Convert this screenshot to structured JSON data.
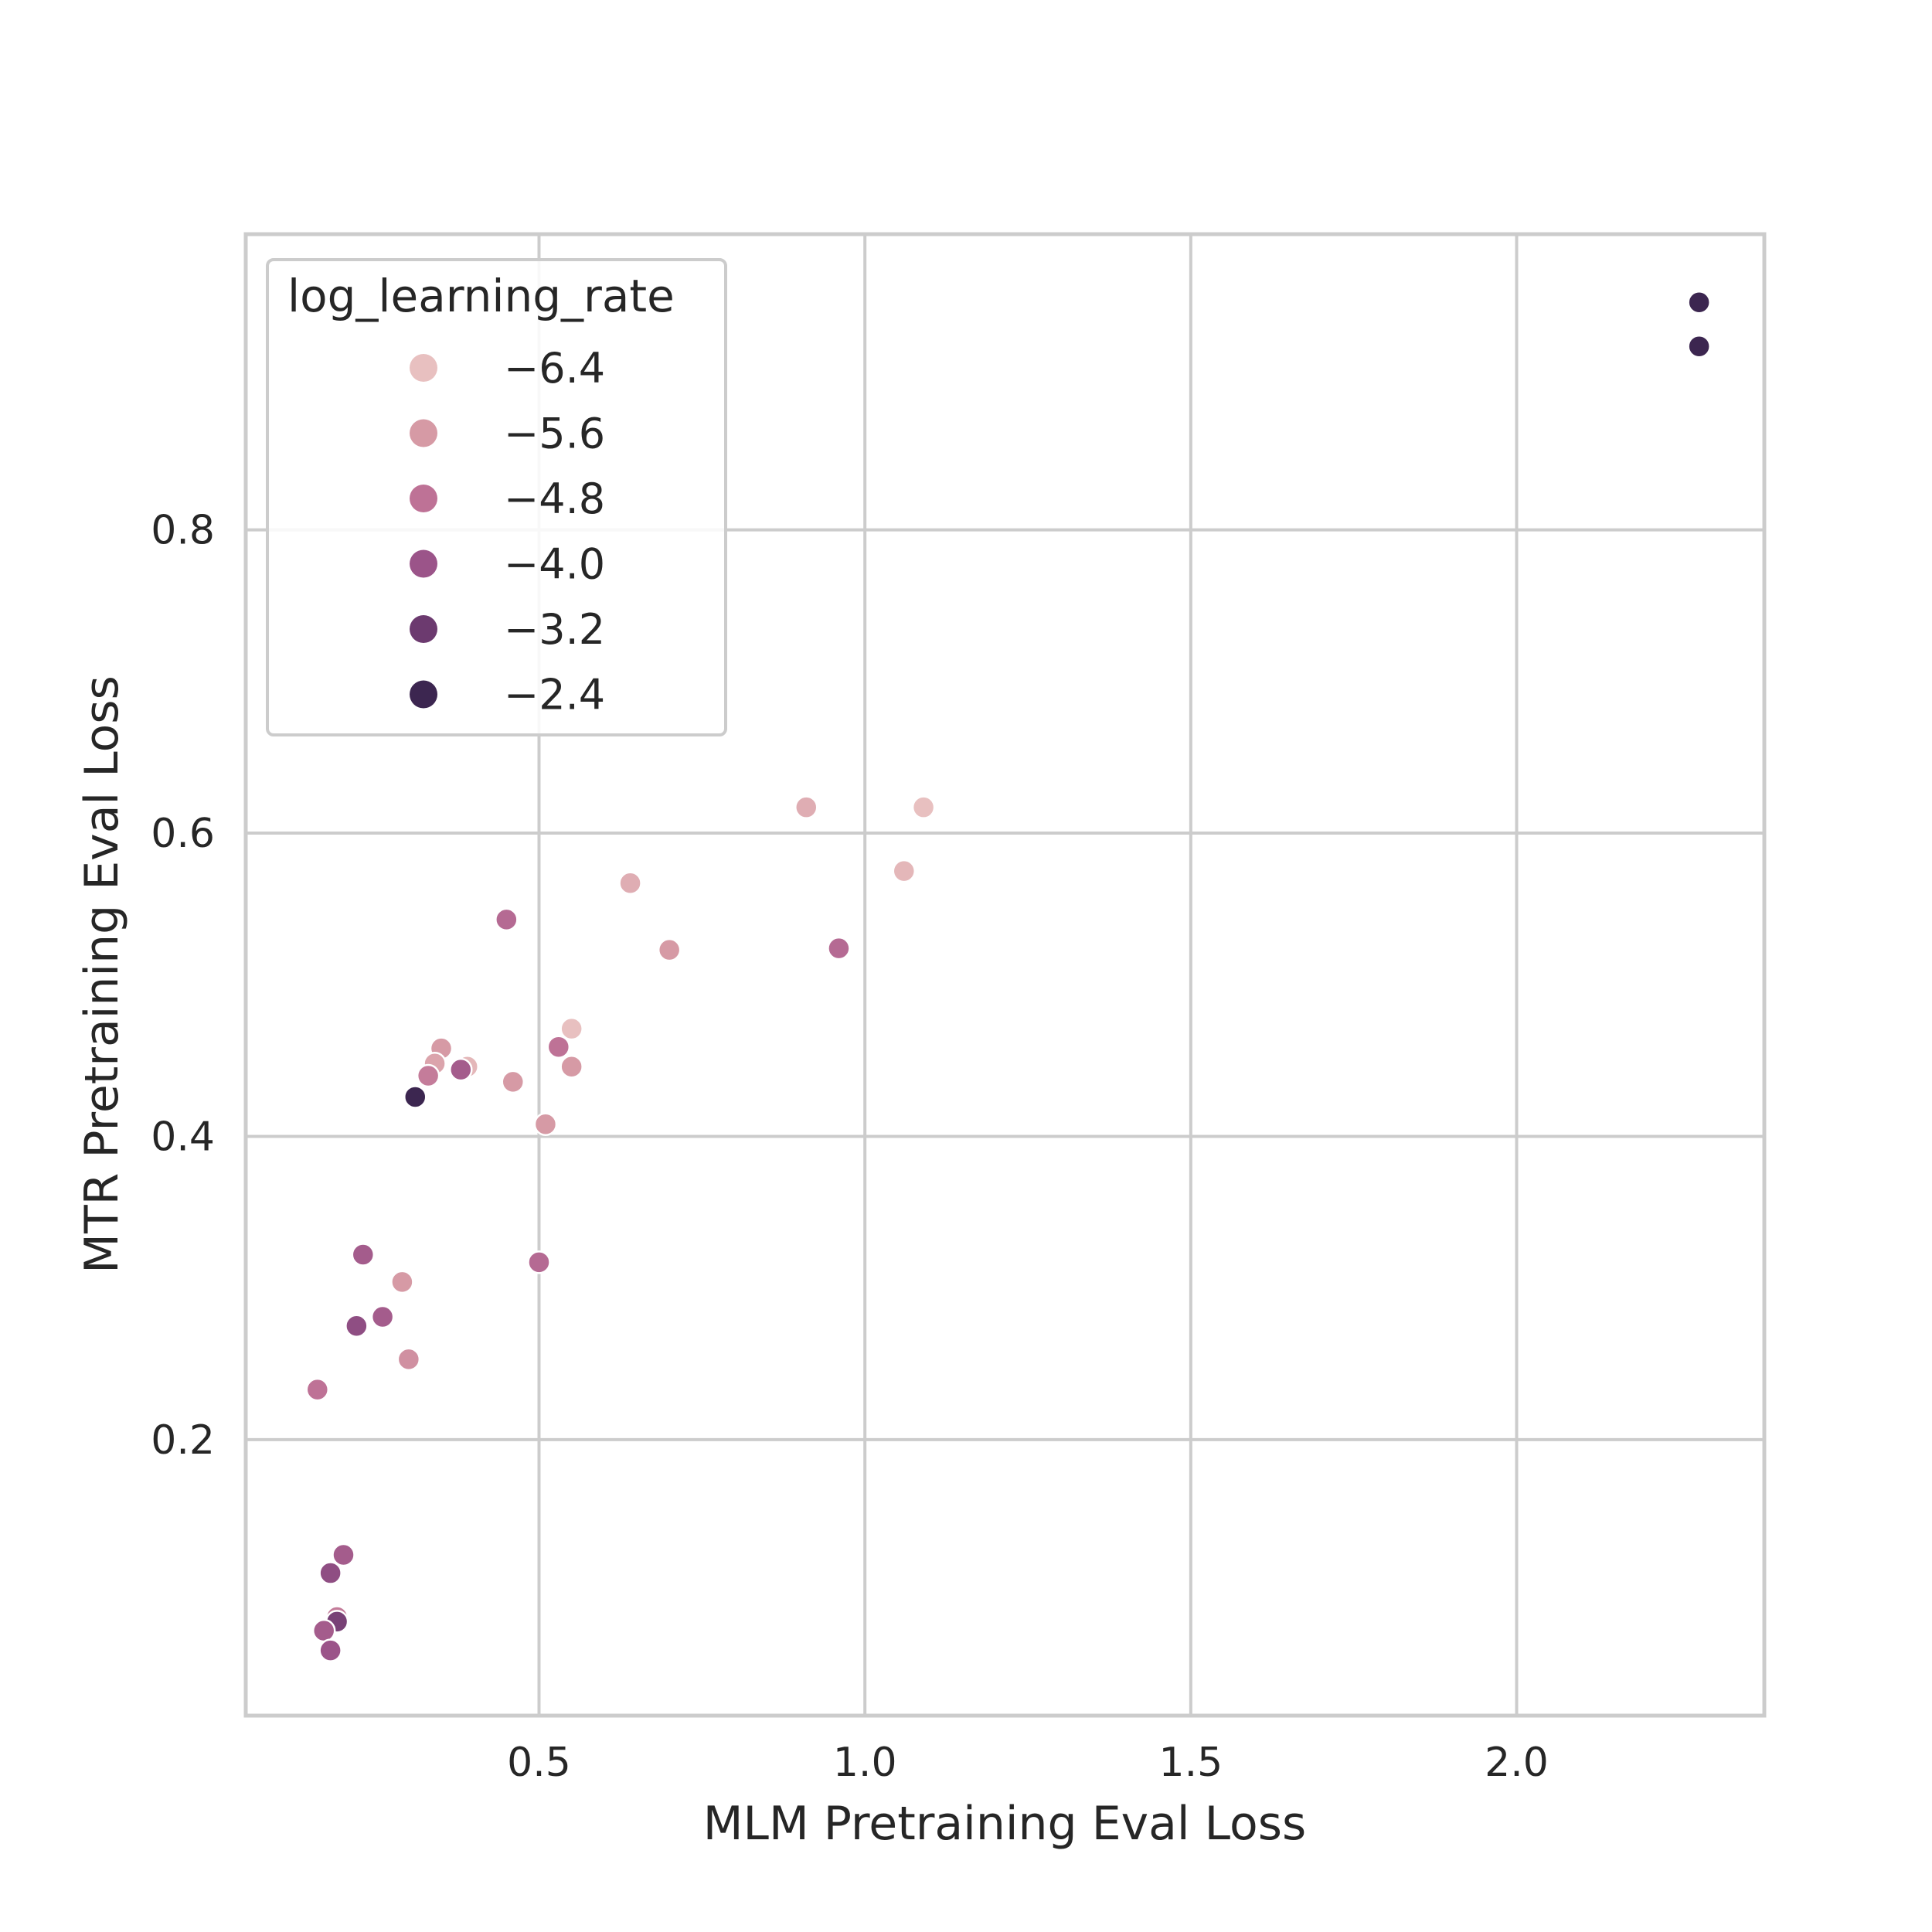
{
  "chart_data": {
    "type": "scatter",
    "title": "",
    "xlabel": "MLM Pretraining Eval Loss",
    "ylabel": "MTR Pretraining Eval Loss",
    "xlim": [
      0.05,
      2.38
    ],
    "ylim": [
      0.018,
      0.995
    ],
    "xticks": [
      0.5,
      1.0,
      1.5,
      2.0
    ],
    "xtick_labels": [
      "0.5",
      "1.0",
      "1.5",
      "2.0"
    ],
    "yticks": [
      0.2,
      0.4,
      0.6,
      0.8
    ],
    "ytick_labels": [
      "0.2",
      "0.4",
      "0.6",
      "0.8"
    ],
    "grid": true,
    "hue_variable": "log_learning_rate",
    "legend": {
      "title": "log_learning_rate",
      "placement": "upper-left",
      "entries": [
        {
          "label": "−6.4",
          "value": -6.4,
          "color": "#e8c0c0"
        },
        {
          "label": "−5.6",
          "value": -5.6,
          "color": "#d69aa5"
        },
        {
          "label": "−4.8",
          "value": -4.8,
          "color": "#be7296"
        },
        {
          "label": "−4.0",
          "value": -4.0,
          "color": "#9b5489"
        },
        {
          "label": "−3.2",
          "value": -3.2,
          "color": "#6c3a6f"
        },
        {
          "label": "−2.4",
          "value": -2.4,
          "color": "#3c2650"
        }
      ]
    },
    "points": [
      {
        "x": 2.28,
        "y": 0.95,
        "hue": -2.4
      },
      {
        "x": 2.28,
        "y": 0.921,
        "hue": -2.4
      },
      {
        "x": 0.91,
        "y": 0.617,
        "hue": -6.0
      },
      {
        "x": 1.09,
        "y": 0.617,
        "hue": -6.5
      },
      {
        "x": 1.06,
        "y": 0.575,
        "hue": -6.2
      },
      {
        "x": 0.64,
        "y": 0.567,
        "hue": -6.0
      },
      {
        "x": 0.45,
        "y": 0.543,
        "hue": -4.6
      },
      {
        "x": 0.7,
        "y": 0.523,
        "hue": -5.6
      },
      {
        "x": 0.96,
        "y": 0.524,
        "hue": -4.6
      },
      {
        "x": 0.55,
        "y": 0.471,
        "hue": -6.6
      },
      {
        "x": 0.35,
        "y": 0.458,
        "hue": -5.6
      },
      {
        "x": 0.53,
        "y": 0.459,
        "hue": -4.8
      },
      {
        "x": 0.55,
        "y": 0.446,
        "hue": -5.6
      },
      {
        "x": 0.39,
        "y": 0.446,
        "hue": -6.2
      },
      {
        "x": 0.34,
        "y": 0.448,
        "hue": -5.8
      },
      {
        "x": 0.33,
        "y": 0.44,
        "hue": -5.0
      },
      {
        "x": 0.38,
        "y": 0.444,
        "hue": -4.2
      },
      {
        "x": 0.46,
        "y": 0.436,
        "hue": -5.6
      },
      {
        "x": 0.31,
        "y": 0.426,
        "hue": -2.4
      },
      {
        "x": 0.51,
        "y": 0.408,
        "hue": -5.6
      },
      {
        "x": 0.23,
        "y": 0.322,
        "hue": -4.2
      },
      {
        "x": 0.5,
        "y": 0.317,
        "hue": -4.6
      },
      {
        "x": 0.29,
        "y": 0.304,
        "hue": -5.6
      },
      {
        "x": 0.26,
        "y": 0.281,
        "hue": -4.2
      },
      {
        "x": 0.22,
        "y": 0.275,
        "hue": -3.8
      },
      {
        "x": 0.3,
        "y": 0.253,
        "hue": -5.4
      },
      {
        "x": 0.16,
        "y": 0.233,
        "hue": -4.8
      },
      {
        "x": 0.2,
        "y": 0.124,
        "hue": -4.2
      },
      {
        "x": 0.18,
        "y": 0.112,
        "hue": -3.8
      },
      {
        "x": 0.19,
        "y": 0.083,
        "hue": -5.0
      },
      {
        "x": 0.19,
        "y": 0.08,
        "hue": -3.4
      },
      {
        "x": 0.17,
        "y": 0.074,
        "hue": -4.2
      },
      {
        "x": 0.18,
        "y": 0.061,
        "hue": -4.0
      }
    ]
  }
}
